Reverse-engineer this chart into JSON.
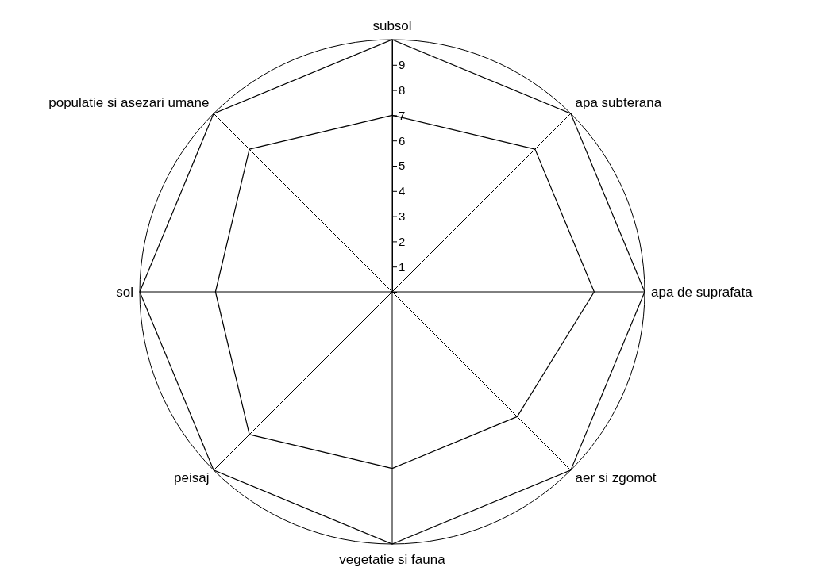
{
  "chart_data": {
    "type": "radar",
    "categories": [
      "subsol",
      "apa subterana",
      "apa de suprafata",
      "aer si zgomot",
      "vegetatie si fauna",
      "peisaj",
      "sol",
      "populatie si asezari umane"
    ],
    "series": [
      {
        "color": "#000000",
        "values": [
          7,
          8,
          8,
          7,
          7,
          8,
          7,
          8
        ]
      }
    ],
    "ylim": [
      0,
      10
    ],
    "yticks": [
      1,
      2,
      3,
      4,
      5,
      6,
      7,
      8,
      9
    ],
    "grid": true,
    "marker": "none",
    "line_style": "solid"
  }
}
